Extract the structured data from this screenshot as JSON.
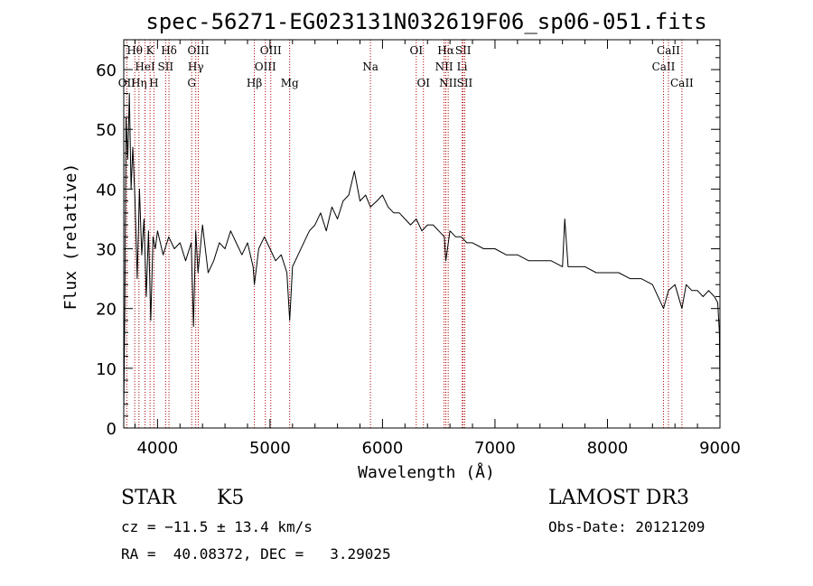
{
  "chart_data": {
    "type": "line",
    "title": "spec-56271-EG023131N032619F06_sp06-051.fits",
    "xlabel": "Wavelength (Å)",
    "ylabel": "Flux (relative)",
    "xlim": [
      3700,
      9000
    ],
    "ylim": [
      0,
      65
    ],
    "xticks": [
      4000,
      5000,
      6000,
      7000,
      8000,
      9000
    ],
    "yticks": [
      0,
      10,
      20,
      30,
      40,
      50,
      60
    ],
    "grid": false,
    "series": [
      {
        "color": "#000000",
        "x": [
          3700,
          3710,
          3720,
          3735,
          3750,
          3765,
          3780,
          3800,
          3820,
          3840,
          3860,
          3880,
          3900,
          3920,
          3940,
          3960,
          3980,
          4000,
          4050,
          4100,
          4150,
          4200,
          4250,
          4300,
          4320,
          4340,
          4360,
          4400,
          4450,
          4500,
          4550,
          4600,
          4650,
          4700,
          4750,
          4800,
          4850,
          4861,
          4900,
          4950,
          5000,
          5050,
          5100,
          5150,
          5175,
          5200,
          5250,
          5300,
          5350,
          5400,
          5450,
          5500,
          5550,
          5600,
          5650,
          5700,
          5750,
          5800,
          5850,
          5893,
          5950,
          6000,
          6050,
          6100,
          6150,
          6200,
          6250,
          6300,
          6350,
          6400,
          6450,
          6500,
          6550,
          6563,
          6600,
          6650,
          6700,
          6750,
          6800,
          6900,
          7000,
          7100,
          7200,
          7300,
          7400,
          7500,
          7600,
          7620,
          7650,
          7700,
          7800,
          7900,
          8000,
          8100,
          8200,
          8300,
          8400,
          8498,
          8542,
          8600,
          8662,
          8700,
          8750,
          8800,
          8850,
          8900,
          8950,
          8980,
          8995,
          9000
        ],
        "y": [
          3,
          20,
          52,
          45,
          56,
          40,
          47,
          38,
          25,
          40,
          29,
          35,
          22,
          33,
          18,
          32,
          30,
          33,
          29,
          32,
          30,
          31,
          28,
          31,
          17,
          33,
          26,
          34,
          26,
          28,
          31,
          30,
          33,
          31,
          29,
          31,
          27,
          24,
          30,
          32,
          30,
          28,
          29,
          26,
          18,
          27,
          29,
          31,
          33,
          34,
          36,
          33,
          37,
          35,
          38,
          39,
          43,
          38,
          39,
          37,
          38,
          39,
          37,
          36,
          36,
          35,
          34,
          35,
          33,
          34,
          34,
          33,
          32,
          28,
          33,
          32,
          32,
          31,
          31,
          30,
          30,
          29,
          29,
          28,
          28,
          28,
          27,
          35,
          27,
          27,
          27,
          26,
          26,
          26,
          25,
          25,
          24,
          20,
          23,
          24,
          20,
          24,
          23,
          23,
          22,
          23,
          22,
          21,
          16,
          5
        ]
      }
    ],
    "spectral_lines": [
      {
        "label": "OII",
        "x": 3727,
        "row": 2
      },
      {
        "label": "Hθ",
        "x": 3798,
        "row": 0
      },
      {
        "label": "Hη",
        "x": 3835,
        "row": 2
      },
      {
        "label": "HeI",
        "x": 3889,
        "row": 1
      },
      {
        "label": "K",
        "x": 3934,
        "row": 0
      },
      {
        "label": "H",
        "x": 3968,
        "row": 2
      },
      {
        "label": "SII",
        "x": 4072,
        "row": 1
      },
      {
        "label": "Hδ",
        "x": 4102,
        "row": 0
      },
      {
        "label": "G",
        "x": 4304,
        "row": 2
      },
      {
        "label": "OIII",
        "x": 4363,
        "row": 0
      },
      {
        "label": "Hγ",
        "x": 4340,
        "row": 1
      },
      {
        "label": "Hβ",
        "x": 4861,
        "row": 2
      },
      {
        "label": "OIII",
        "x": 4959,
        "row": 1
      },
      {
        "label": "OIII",
        "x": 5007,
        "row": 0
      },
      {
        "label": "Mg",
        "x": 5175,
        "row": 2
      },
      {
        "label": "Na",
        "x": 5893,
        "row": 1
      },
      {
        "label": "OI",
        "x": 6300,
        "row": 0
      },
      {
        "label": "OI",
        "x": 6364,
        "row": 2
      },
      {
        "label": "NII",
        "x": 6548,
        "row": 1
      },
      {
        "label": "Hα",
        "x": 6563,
        "row": 0
      },
      {
        "label": "NII",
        "x": 6584,
        "row": 2
      },
      {
        "label": "SII",
        "x": 6717,
        "row": 0
      },
      {
        "label": "Li",
        "x": 6708,
        "row": 1
      },
      {
        "label": "SII",
        "x": 6731,
        "row": 2
      },
      {
        "label": "CaII",
        "x": 8498,
        "row": 1
      },
      {
        "label": "CaII",
        "x": 8542,
        "row": 0
      },
      {
        "label": "CaII",
        "x": 8662,
        "row": 2
      }
    ]
  },
  "info": {
    "class": "STAR",
    "subclass": "K5",
    "survey": "LAMOST DR3",
    "cz": "cz = −11.5 ± 13.4 km/s",
    "obs_date": "Obs-Date: 20121209",
    "radec": "RA =  40.08372, DEC =   3.29025"
  }
}
